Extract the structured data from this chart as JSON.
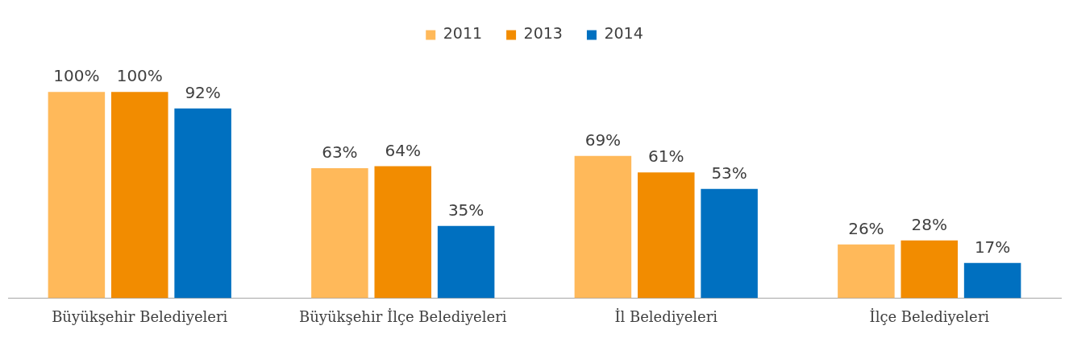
{
  "chart_data": {
    "type": "bar",
    "categories": [
      "Büyükşehir Belediyeleri",
      "Büyükşehir İlçe Belediyeleri",
      "İl Belediyeleri",
      "İlçe Belediyeleri"
    ],
    "series": [
      {
        "name": "2011",
        "color": "#ffb95a",
        "values": [
          100,
          63,
          69,
          26
        ],
        "value_labels": [
          "100%",
          "63%",
          "69%",
          "26%"
        ]
      },
      {
        "name": "2013",
        "color": "#f28c00",
        "values": [
          100,
          64,
          61,
          28
        ],
        "value_labels": [
          "100%",
          "64%",
          "61%",
          "28%"
        ]
      },
      {
        "name": "2014",
        "color": "#0070c0",
        "values": [
          92,
          35,
          53,
          17
        ],
        "value_labels": [
          "92%",
          "35%",
          "53%",
          "17%"
        ]
      }
    ],
    "legend": "top",
    "grid": false,
    "tick_labels": "x"
  }
}
